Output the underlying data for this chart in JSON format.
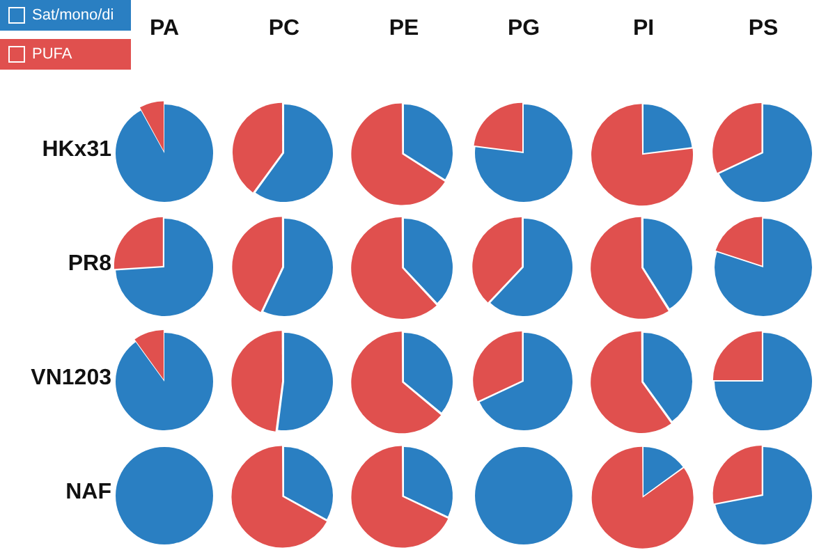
{
  "chart_data": [
    {
      "type": "pie",
      "title": "PA",
      "ylabel": "HKx31",
      "legend": "top left",
      "categories": [
        "Sat/mono/di",
        "PUFA"
      ],
      "values": [
        92,
        8
      ],
      "colors": [
        "#2a7fc2",
        "#e0504e"
      ]
    },
    {
      "type": "pie",
      "title": "PC",
      "values": [
        60,
        40
      ],
      "colors": [
        "#2a7fc2",
        "#e0504e"
      ]
    },
    {
      "type": "pie",
      "title": "PE",
      "values": [
        34,
        66
      ],
      "colors": [
        "#2a7fc2",
        "#e0504e"
      ]
    },
    {
      "type": "pie",
      "title": "PG",
      "values": [
        77,
        23
      ],
      "colors": [
        "#2a7fc2",
        "#e0504e"
      ]
    },
    {
      "type": "pie",
      "title": "PI",
      "values": [
        23,
        77
      ],
      "colors": [
        "#2a7fc2",
        "#e0504e"
      ]
    },
    {
      "type": "pie",
      "title": "PS",
      "values": [
        68,
        32
      ],
      "colors": [
        "#2a7fc2",
        "#e0504e"
      ]
    },
    {
      "type": "pie",
      "ylabel": "PR8",
      "values": [
        74,
        26
      ],
      "colors": [
        "#2a7fc2",
        "#e0504e"
      ]
    },
    {
      "type": "pie",
      "values": [
        57,
        43
      ],
      "colors": [
        "#2a7fc2",
        "#e0504e"
      ]
    },
    {
      "type": "pie",
      "values": [
        38,
        62
      ],
      "colors": [
        "#2a7fc2",
        "#e0504e"
      ]
    },
    {
      "type": "pie",
      "values": [
        62,
        38
      ],
      "colors": [
        "#2a7fc2",
        "#e0504e"
      ]
    },
    {
      "type": "pie",
      "values": [
        41,
        59
      ],
      "colors": [
        "#2a7fc2",
        "#e0504e"
      ]
    },
    {
      "type": "pie",
      "values": [
        80,
        20
      ],
      "colors": [
        "#2a7fc2",
        "#e0504e"
      ]
    },
    {
      "type": "pie",
      "ylabel": "VN1203",
      "values": [
        90,
        10
      ],
      "colors": [
        "#2a7fc2",
        "#e0504e"
      ]
    },
    {
      "type": "pie",
      "values": [
        52,
        48
      ],
      "colors": [
        "#2a7fc2",
        "#e0504e"
      ]
    },
    {
      "type": "pie",
      "values": [
        36,
        64
      ],
      "colors": [
        "#2a7fc2",
        "#e0504e"
      ]
    },
    {
      "type": "pie",
      "values": [
        68,
        32
      ],
      "colors": [
        "#2a7fc2",
        "#e0504e"
      ]
    },
    {
      "type": "pie",
      "values": [
        40,
        60
      ],
      "colors": [
        "#2a7fc2",
        "#e0504e"
      ]
    },
    {
      "type": "pie",
      "values": [
        75,
        25
      ],
      "colors": [
        "#2a7fc2",
        "#e0504e"
      ]
    },
    {
      "type": "pie",
      "ylabel": "NAF",
      "values": [
        100,
        0
      ],
      "colors": [
        "#2a7fc2",
        "#e0504e"
      ]
    },
    {
      "type": "pie",
      "values": [
        33,
        67
      ],
      "colors": [
        "#2a7fc2",
        "#e0504e"
      ]
    },
    {
      "type": "pie",
      "values": [
        32,
        68
      ],
      "colors": [
        "#2a7fc2",
        "#e0504e"
      ]
    },
    {
      "type": "pie",
      "values": [
        100,
        0
      ],
      "colors": [
        "#2a7fc2",
        "#e0504e"
      ]
    },
    {
      "type": "pie",
      "values": [
        15,
        85
      ],
      "colors": [
        "#2a7fc2",
        "#e0504e"
      ]
    },
    {
      "type": "pie",
      "values": [
        72,
        28
      ],
      "colors": [
        "#2a7fc2",
        "#e0504e"
      ]
    }
  ]
}
